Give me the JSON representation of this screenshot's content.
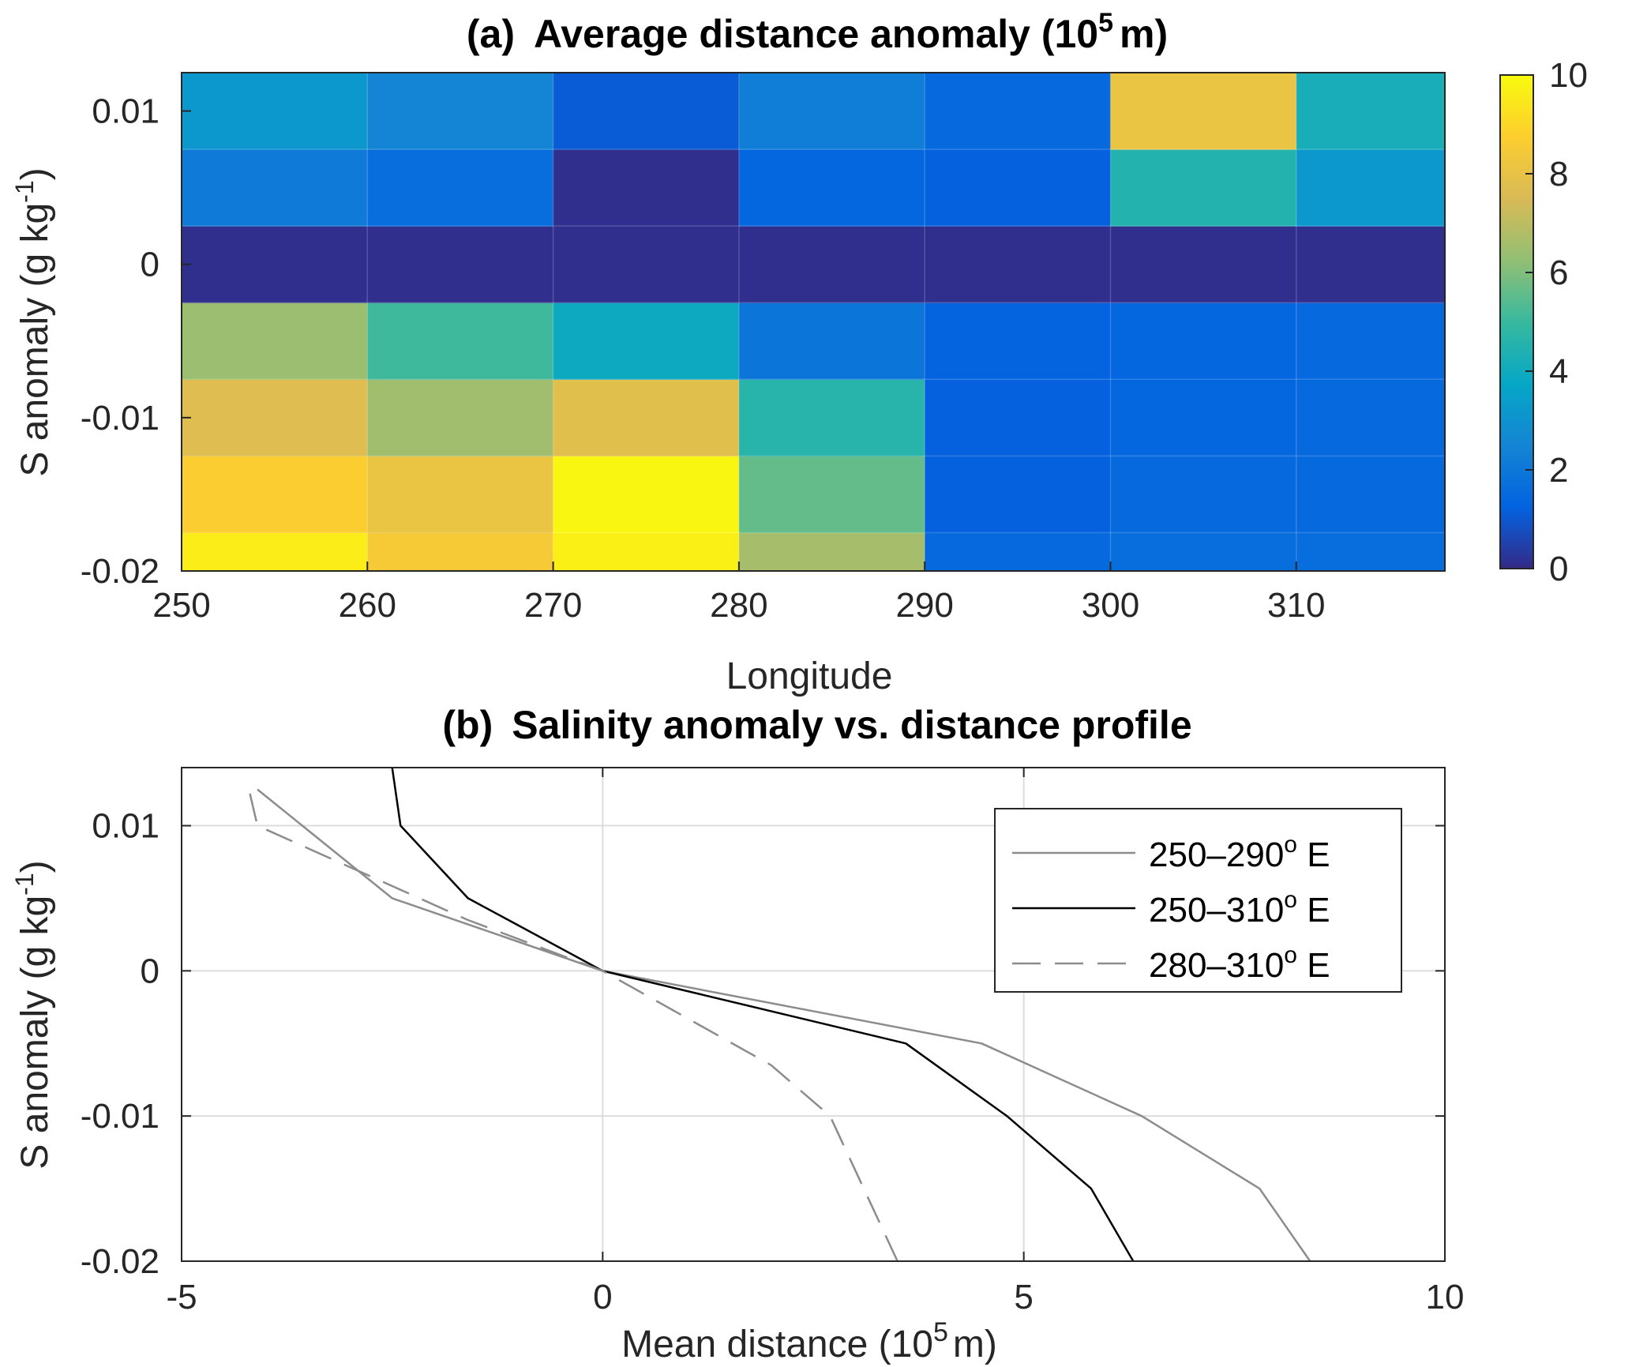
{
  "chart_data": [
    {
      "type": "heatmap",
      "panel_label": "(a)",
      "title_main": "Average distance anomaly (10",
      "title_exp": "5",
      "title_unit": "m)",
      "xlabel": "Longitude",
      "ylabel_main": "S anomaly (g kg",
      "ylabel_exp": "-1",
      "ylabel_close": ")",
      "x_edges": [
        250,
        260,
        270,
        280,
        290,
        300,
        310,
        318
      ],
      "y_edges": [
        -0.02,
        -0.0175,
        -0.0125,
        -0.0075,
        -0.0025,
        0.0025,
        0.0075,
        0.0125
      ],
      "x_ticks": [
        "250",
        "260",
        "270",
        "280",
        "290",
        "300",
        "310"
      ],
      "y_ticks": [
        "-0.02",
        "-0.01",
        "0",
        "0.01"
      ],
      "colorbar": {
        "min": 0,
        "max": 10,
        "ticks": [
          "0",
          "2",
          "4",
          "6",
          "8",
          "10"
        ],
        "colormap": "parula"
      },
      "values": [
        [
          9.6,
          8.5,
          9.7,
          6.6,
          1.5,
          1.6,
          1.6
        ],
        [
          8.7,
          8.1,
          9.9,
          5.6,
          1.2,
          1.5,
          1.5
        ],
        [
          7.7,
          6.5,
          7.8,
          4.6,
          1.2,
          1.4,
          1.5
        ],
        [
          6.4,
          5.1,
          3.9,
          1.9,
          1.3,
          1.4,
          1.5
        ],
        [
          0.1,
          0.1,
          0.1,
          0.1,
          0.1,
          0.1,
          0.1
        ],
        [
          2.1,
          1.6,
          0.1,
          1.4,
          1.2,
          4.5,
          3.2
        ],
        [
          3.2,
          2.5,
          1.1,
          2.2,
          1.5,
          8.1,
          4.2
        ]
      ]
    },
    {
      "type": "line",
      "panel_label": "(b)",
      "title": "Salinity anomaly vs. distance profile",
      "xlabel_main": "Mean distance (10",
      "xlabel_exp": "5",
      "xlabel_unit": "m)",
      "ylabel_main": "S anomaly (g kg",
      "ylabel_exp": "-1",
      "ylabel_close": ")",
      "xlim": [
        -5,
        10
      ],
      "ylim": [
        -0.02,
        0.014
      ],
      "x_ticks": [
        "-5",
        "0",
        "5",
        "10"
      ],
      "y_ticks": [
        "-0.02",
        "-0.01",
        "0",
        "0.01"
      ],
      "grid": true,
      "legend_position": "top-right",
      "series": [
        {
          "name_main": "250–290",
          "name_sup": "o",
          "name_unit": " E",
          "color": "#8c8c8c",
          "dash": "solid",
          "x": [
            8.4,
            7.8,
            6.4,
            4.5,
            0,
            -2.5,
            -4.1
          ],
          "y": [
            -0.02,
            -0.015,
            -0.01,
            -0.005,
            0,
            0.005,
            0.0125
          ]
        },
        {
          "name_main": "250–310",
          "name_sup": "o",
          "name_unit": " E",
          "color": "#000000",
          "dash": "solid",
          "x": [
            6.3,
            5.8,
            4.8,
            3.6,
            0,
            -1.6,
            -2.4,
            -2.5
          ],
          "y": [
            -0.02,
            -0.015,
            -0.01,
            -0.005,
            0,
            0.005,
            0.01,
            0.014
          ]
        },
        {
          "name_main": "280–310",
          "name_sup": "o",
          "name_unit": " E",
          "color": "#8c8c8c",
          "dash": "dashed",
          "x": [
            3.5,
            2.7,
            2.0,
            0,
            -1.6,
            -4.1,
            -4.2
          ],
          "y": [
            -0.02,
            -0.01,
            -0.0065,
            0,
            0.0035,
            0.01,
            0.0125
          ]
        }
      ]
    }
  ]
}
